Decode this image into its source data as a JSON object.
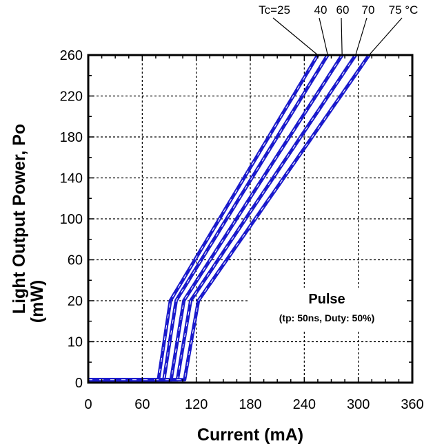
{
  "chart_data": {
    "type": "line",
    "xlabel": "Current (mA)",
    "ylabel_line1": "Light Output Power, Po",
    "ylabel_line2": "(mW)",
    "x_ticks": [
      0,
      60,
      120,
      180,
      240,
      300,
      360
    ],
    "y_ticks": [
      "0",
      "10",
      "20",
      "60",
      "100",
      "140",
      "180",
      "220",
      "260"
    ],
    "xlim": [
      0,
      360
    ],
    "grid": true,
    "series_labels": [
      "Tc=25",
      "40",
      "60",
      "70",
      "75 °C"
    ],
    "annotation_title": "Pulse",
    "annotation_sub": "(tp: 50ns, Duty: 50%)",
    "line_color": "#1a1acc",
    "series": [
      {
        "name": "Tc=25",
        "points": [
          [
            0,
            0.7
          ],
          [
            78,
            0.7
          ],
          [
            255,
            260
          ]
        ]
      },
      {
        "name": "40",
        "points": [
          [
            0,
            0.7
          ],
          [
            84,
            0.7
          ],
          [
            266,
            260
          ]
        ]
      },
      {
        "name": "60",
        "points": [
          [
            0,
            0.7
          ],
          [
            92,
            0.7
          ],
          [
            282,
            260
          ]
        ]
      },
      {
        "name": "70",
        "points": [
          [
            0,
            0.7
          ],
          [
            99,
            0.7
          ],
          [
            297,
            260
          ]
        ]
      },
      {
        "name": "75 °C",
        "points": [
          [
            0,
            0.7
          ],
          [
            107,
            0.7
          ],
          [
            312,
            260
          ]
        ]
      }
    ]
  }
}
